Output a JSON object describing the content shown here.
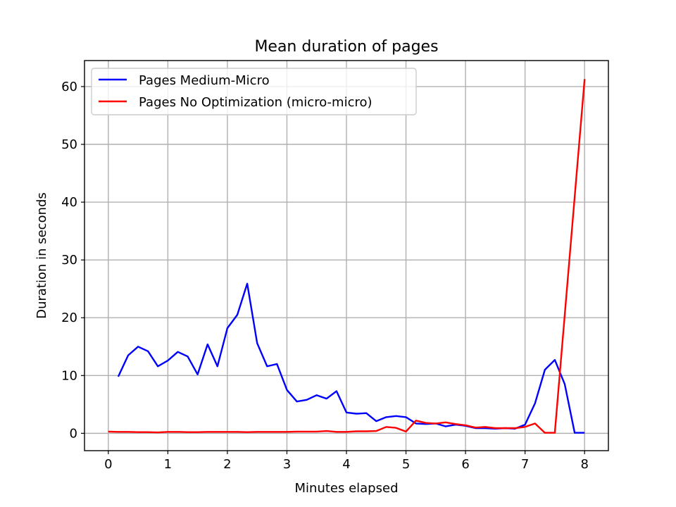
{
  "chart_data": {
    "type": "line",
    "title": "Mean duration of pages",
    "xlabel": "Minutes elapsed",
    "ylabel": "Duration in seconds",
    "xlim": [
      -0.4,
      8.4
    ],
    "ylim": [
      -3,
      64.5
    ],
    "xticks": [
      0,
      1,
      2,
      3,
      4,
      5,
      6,
      7,
      8
    ],
    "yticks": [
      0,
      10,
      20,
      30,
      40,
      50,
      60
    ],
    "grid": true,
    "legend_position": "upper-left",
    "series": [
      {
        "name": "Pages Medium-Micro",
        "color": "#0000ff",
        "x": [
          0.167,
          0.333,
          0.5,
          0.667,
          0.833,
          1.0,
          1.167,
          1.333,
          1.5,
          1.667,
          1.833,
          2.0,
          2.167,
          2.333,
          2.5,
          2.667,
          2.833,
          3.0,
          3.167,
          3.333,
          3.5,
          3.667,
          3.833,
          4.0,
          4.167,
          4.333,
          4.5,
          4.667,
          4.833,
          5.0,
          5.167,
          5.333,
          5.5,
          5.667,
          5.833,
          6.0,
          6.167,
          6.333,
          6.5,
          6.667,
          6.833,
          7.0,
          7.167,
          7.333,
          7.5,
          7.667,
          7.833,
          8.0
        ],
        "y": [
          9.8,
          13.5,
          15.0,
          14.2,
          11.6,
          12.6,
          14.1,
          13.3,
          10.2,
          15.4,
          11.6,
          18.2,
          20.5,
          25.9,
          15.6,
          11.6,
          12.0,
          7.5,
          5.5,
          5.8,
          6.6,
          6.0,
          7.3,
          3.6,
          3.4,
          3.5,
          2.1,
          2.8,
          3.0,
          2.8,
          1.7,
          1.6,
          1.7,
          1.2,
          1.5,
          1.3,
          0.9,
          0.9,
          0.8,
          0.9,
          0.8,
          1.5,
          5.2,
          11.0,
          12.7,
          8.5,
          0.1,
          0.1
        ]
      },
      {
        "name": "Pages No Optimization (micro-micro)",
        "color": "#ff0000",
        "x": [
          0.0,
          0.167,
          0.333,
          0.5,
          0.667,
          0.833,
          1.0,
          1.167,
          1.333,
          1.5,
          1.667,
          1.833,
          2.0,
          2.167,
          2.333,
          2.5,
          2.667,
          2.833,
          3.0,
          3.167,
          3.333,
          3.5,
          3.667,
          3.833,
          4.0,
          4.167,
          4.333,
          4.5,
          4.667,
          4.833,
          5.0,
          5.167,
          5.333,
          5.5,
          5.667,
          5.833,
          6.0,
          6.167,
          6.333,
          6.5,
          6.667,
          6.833,
          7.0,
          7.167,
          7.333,
          7.5,
          8.0
        ],
        "y": [
          0.3,
          0.25,
          0.25,
          0.2,
          0.2,
          0.15,
          0.25,
          0.25,
          0.2,
          0.2,
          0.25,
          0.25,
          0.25,
          0.25,
          0.2,
          0.25,
          0.25,
          0.25,
          0.25,
          0.3,
          0.3,
          0.3,
          0.4,
          0.25,
          0.25,
          0.35,
          0.35,
          0.4,
          1.1,
          0.95,
          0.3,
          2.2,
          1.8,
          1.7,
          1.9,
          1.6,
          1.4,
          1.0,
          1.1,
          0.9,
          0.9,
          0.9,
          1.1,
          1.7,
          0.1,
          0.1,
          61.3
        ]
      }
    ]
  }
}
